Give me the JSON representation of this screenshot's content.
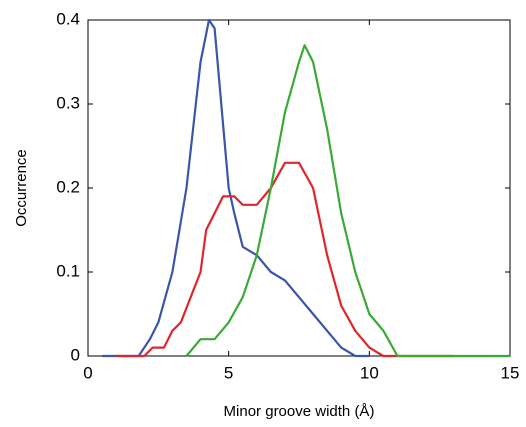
{
  "chart_data": {
    "type": "line",
    "x_label": "Minor groove width (Å)",
    "y_label": "Occurrence",
    "xlim": [
      0,
      15
    ],
    "ylim": [
      0,
      0.4
    ],
    "xticks": [
      0,
      5,
      10,
      15
    ],
    "yticks": [
      0,
      0.1,
      0.2,
      0.3,
      0.4
    ],
    "grid": false,
    "series": [
      {
        "color": "#3b55a8",
        "x": [
          0.5,
          1.8,
          2.2,
          2.5,
          3,
          3.5,
          4,
          4.3,
          4.5,
          5,
          5.2,
          5.5,
          6,
          6.5,
          7,
          7.5,
          8,
          8.5,
          9,
          9.5,
          10
        ],
        "values": [
          0,
          0,
          0.02,
          0.04,
          0.1,
          0.2,
          0.35,
          0.4,
          0.39,
          0.2,
          0.17,
          0.13,
          0.12,
          0.1,
          0.09,
          0.07,
          0.05,
          0.03,
          0.01,
          0,
          0
        ]
      },
      {
        "color": "#e0262a",
        "x": [
          1,
          2,
          2.3,
          2.7,
          3,
          3.3,
          4,
          4.2,
          4.5,
          4.8,
          5.2,
          5.5,
          6,
          6.5,
          7,
          7.5,
          8,
          8.5,
          9,
          9.5,
          10,
          10.5,
          13
        ],
        "values": [
          0,
          0,
          0.01,
          0.01,
          0.03,
          0.04,
          0.1,
          0.15,
          0.17,
          0.19,
          0.19,
          0.18,
          0.18,
          0.2,
          0.23,
          0.23,
          0.2,
          0.12,
          0.06,
          0.03,
          0.01,
          0,
          0
        ]
      },
      {
        "color": "#3aaa35",
        "x": [
          3.5,
          4,
          4.5,
          5,
          5.5,
          6,
          6.5,
          7,
          7.5,
          7.7,
          8,
          8.5,
          9,
          9.5,
          10,
          10.5,
          11,
          15
        ],
        "values": [
          0,
          0.02,
          0.02,
          0.04,
          0.07,
          0.12,
          0.2,
          0.29,
          0.35,
          0.37,
          0.35,
          0.27,
          0.17,
          0.1,
          0.05,
          0.03,
          0,
          0
        ]
      }
    ]
  }
}
